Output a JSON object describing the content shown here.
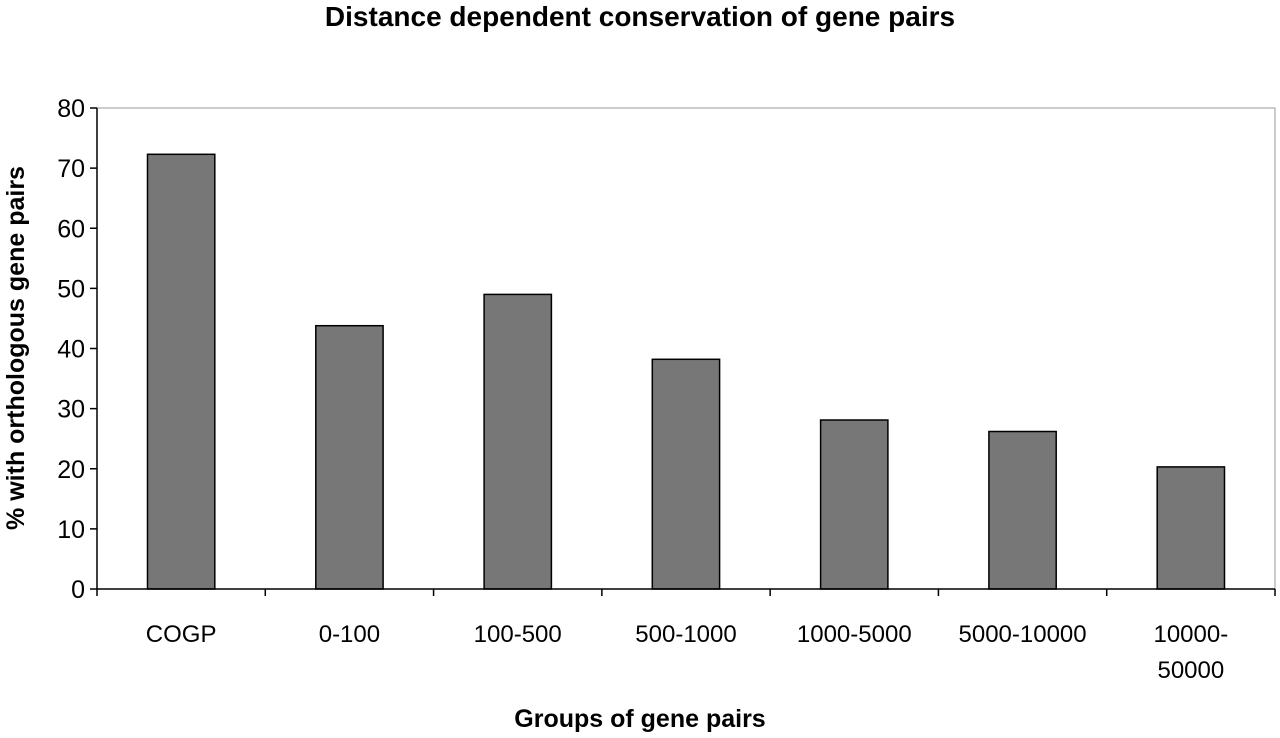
{
  "chart_data": {
    "type": "bar",
    "title": "Distance dependent conservation of gene pairs",
    "xlabel": "Groups of gene pairs",
    "ylabel": "% with orthologous  gene pairs",
    "categories": [
      "COGP",
      "0-100",
      "100-500",
      "500-1000",
      "1000-5000",
      "5000-10000",
      "10000-50000"
    ],
    "category_lines": [
      [
        "COGP"
      ],
      [
        "0-100"
      ],
      [
        "100-500"
      ],
      [
        "500-1000"
      ],
      [
        "1000-5000"
      ],
      [
        "5000-10000"
      ],
      [
        "10000-",
        "50000"
      ]
    ],
    "values": [
      72.3,
      43.8,
      49.0,
      38.2,
      28.1,
      26.2,
      20.3
    ],
    "ylim": [
      0,
      80
    ],
    "yticks": [
      0,
      10,
      20,
      30,
      40,
      50,
      60,
      70,
      80
    ],
    "grid": false,
    "legend": "none",
    "colors": {
      "bar_fill": "#777777",
      "bar_stroke": "#000000",
      "axis": "#000000"
    }
  }
}
